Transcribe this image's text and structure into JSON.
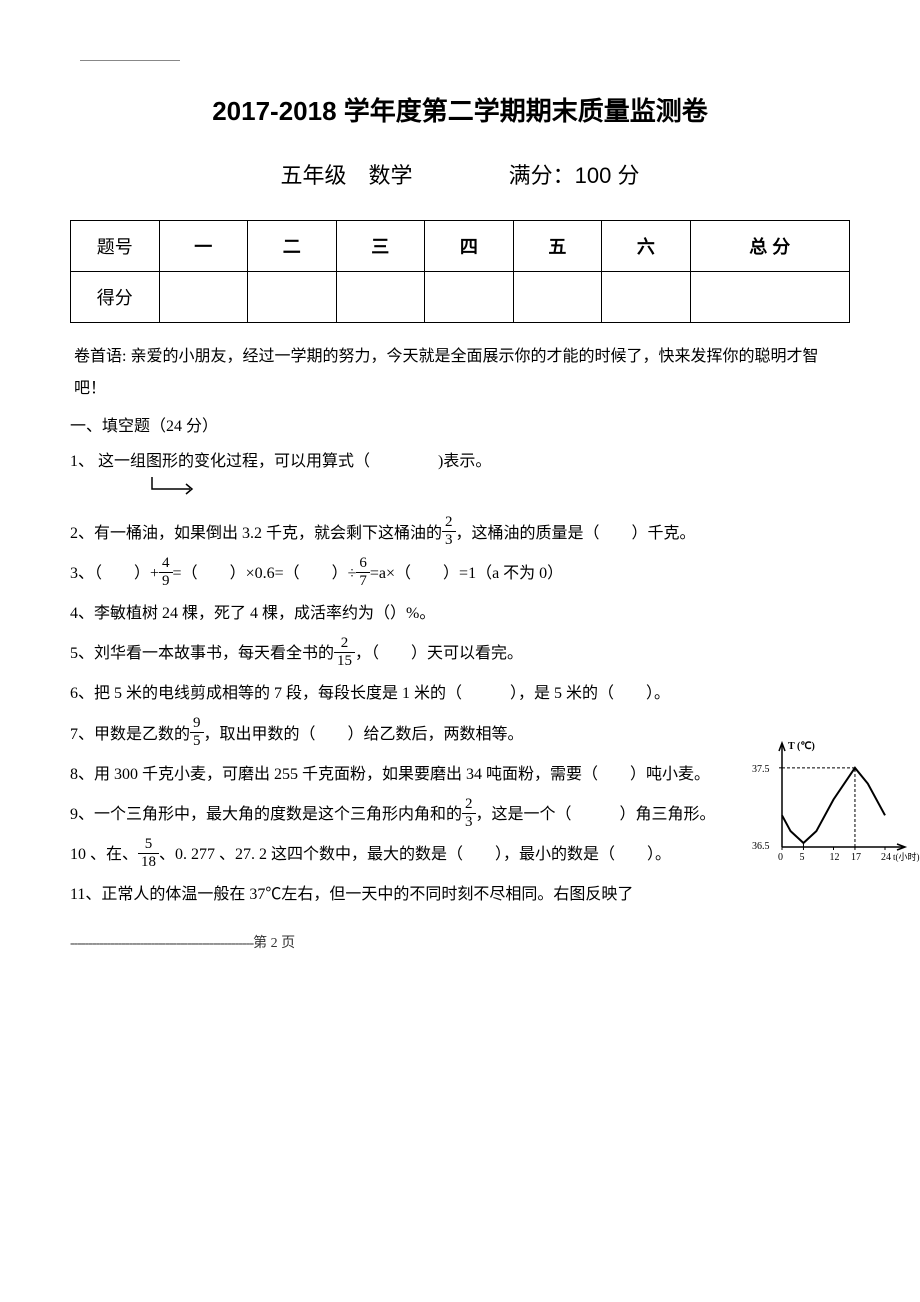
{
  "header": {
    "title": "2017-2018 学年度第二学期期末质量监测卷",
    "grade": "五年级",
    "subject": "数学",
    "fullscore_label": "满分：100 分"
  },
  "score_table": {
    "row_labels": [
      "题号",
      "得分"
    ],
    "columns": [
      "一",
      "二",
      "三",
      "四",
      "五",
      "六",
      "总 分"
    ]
  },
  "intro": "卷首语: 亲爱的小朋友，经过一学期的努力，今天就是全面展示你的才能的时候了，快来发挥你的聪明才智吧！",
  "section1": {
    "title": "一、填空题（24 分）"
  },
  "questions": {
    "q1": {
      "num": "1、",
      "text_before": " 这一组图形的变化过程，可以用算式（",
      "text_after": ")表示。"
    },
    "q2": {
      "num": "2、",
      "text1": "有一桶油，如果倒出 3.2 千克，就会剩下这桶油的",
      "frac_num": "2",
      "frac_den": "3",
      "text2": "，这桶油的质量是（　　）千克。"
    },
    "q3": {
      "num": "3、",
      "text1": "（　　）+",
      "frac1_num": "4",
      "frac1_den": "9",
      "text2": "=（　　）×0.6=（　　）÷",
      "frac2_num": "6",
      "frac2_den": "7",
      "text3": "=a×（　　）=1（a 不为 0）"
    },
    "q4": {
      "num": "4、",
      "text": "李敏植树 24 棵，死了 4 棵，成活率约为（）%。"
    },
    "q5": {
      "num": "5、",
      "text1": "刘华看一本故事书，每天看全书的",
      "frac_num": "2",
      "frac_den": "15",
      "text2": "，（　　）天可以看完。"
    },
    "q6": {
      "num": "6、",
      "text": "把 5 米的电线剪成相等的 7 段，每段长度是 1 米的（　　　），是 5 米的（　　）。"
    },
    "q7": {
      "num": "7、",
      "text1": "甲数是乙数的",
      "frac_num": "9",
      "frac_den": "5",
      "text2": "，取出甲数的（　　）给乙数后，两数相等。"
    },
    "q8": {
      "num": "8、",
      "text": "用 300 千克小麦，可磨出 255 千克面粉，如果要磨出 34 吨面粉，需要（　　）吨小麦。"
    },
    "q9": {
      "num": "9、",
      "text1": "一个三角形中，最大角的度数是这个三角形内角和的",
      "frac_num": "2",
      "frac_den": "3",
      "text2": "，这是一个（　　　）角三角形。"
    },
    "q10": {
      "num": "10 、",
      "text1": "在、",
      "frac_num": "5",
      "frac_den": "18",
      "text2": "、0. 277 、27. 2 这四个数中，最大的数是（　　），最小的数是（　　）。"
    },
    "q11": {
      "num": "11、",
      "text": "正常人的体温一般在 37℃左右，但一天中的不同时刻不尽相同。右图反映了"
    }
  },
  "chart": {
    "y_label": "T (℃)",
    "y_max_label": "37.5",
    "y_min_label": "36.5",
    "x_labels": [
      "0",
      "5",
      "12",
      "17",
      "24"
    ],
    "x_axis_label": "t(小时)",
    "background_color": "#ffffff",
    "line_color": "#000000",
    "font_size": 10,
    "points": [
      {
        "x": 0,
        "y": 36.9
      },
      {
        "x": 2,
        "y": 36.7
      },
      {
        "x": 5,
        "y": 36.55
      },
      {
        "x": 8,
        "y": 36.7
      },
      {
        "x": 12,
        "y": 37.1
      },
      {
        "x": 17,
        "y": 37.5
      },
      {
        "x": 20,
        "y": 37.3
      },
      {
        "x": 24,
        "y": 36.9
      }
    ],
    "xlim": [
      0,
      24
    ],
    "ylim": [
      36.5,
      37.7
    ]
  },
  "footer": {
    "page_text": "第 2 页"
  }
}
